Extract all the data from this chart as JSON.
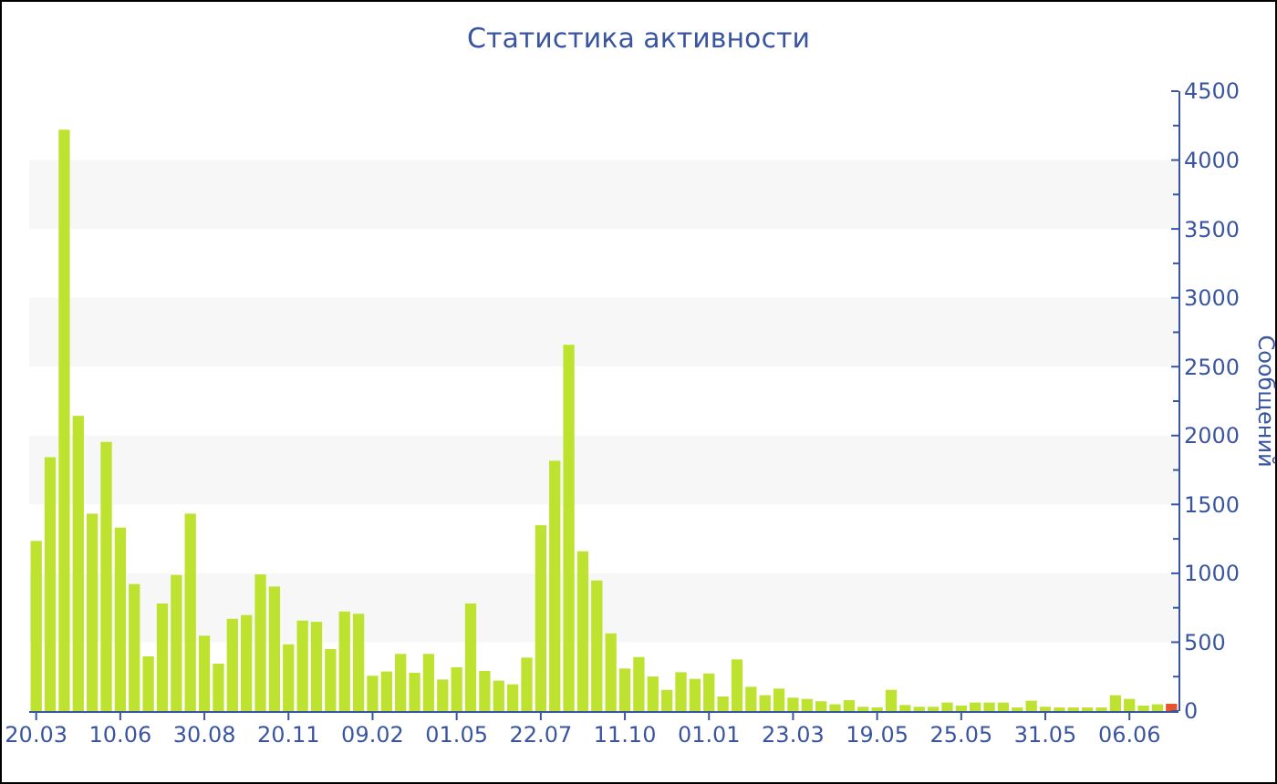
{
  "chart_data": {
    "type": "bar",
    "title": "Статистика активности",
    "ylabel": "Сообщений",
    "categories": [
      "20.03",
      null,
      null,
      null,
      null,
      null,
      "10.06",
      null,
      null,
      null,
      null,
      null,
      "30.08",
      null,
      null,
      null,
      null,
      null,
      "20.11",
      null,
      null,
      null,
      null,
      null,
      "09.02",
      null,
      null,
      null,
      null,
      null,
      "01.05",
      null,
      null,
      null,
      null,
      null,
      "22.07",
      null,
      null,
      null,
      null,
      null,
      "11.10",
      null,
      null,
      null,
      null,
      null,
      "01.01",
      null,
      null,
      null,
      null,
      null,
      "23.03",
      null,
      null,
      null,
      null,
      null,
      "19.05",
      null,
      null,
      null,
      null,
      null,
      "25.05",
      null,
      null,
      null,
      null,
      null,
      "31.05",
      null,
      null,
      null,
      null,
      null,
      "06.06",
      null,
      null,
      null
    ],
    "values": [
      1235,
      1843,
      4220,
      2143,
      1433,
      1954,
      1332,
      922,
      397,
      781,
      988,
      1433,
      547,
      344,
      670,
      697,
      992,
      904,
      485,
      657,
      648,
      450,
      723,
      706,
      256,
      287,
      415,
      278,
      415,
      229,
      318,
      781,
      291,
      221,
      194,
      388,
      1349,
      1817,
      2659,
      1160,
      948,
      564,
      309,
      392,
      251,
      154,
      282,
      234,
      273,
      106,
      375,
      176,
      115,
      163,
      97,
      88,
      71,
      49,
      79,
      31,
      26,
      154,
      44,
      31,
      31,
      62,
      40,
      62,
      62,
      62,
      26,
      75,
      31,
      26,
      26,
      26,
      26,
      115,
      88,
      40,
      49,
      53
    ],
    "colors": [
      "#bde22f",
      "#bde22f",
      "#bde22f",
      "#bde22f",
      "#bde22f",
      "#bde22f",
      "#bde22f",
      "#bde22f",
      "#bde22f",
      "#bde22f",
      "#bde22f",
      "#bde22f",
      "#bde22f",
      "#bde22f",
      "#bde22f",
      "#bde22f",
      "#bde22f",
      "#bde22f",
      "#bde22f",
      "#bde22f",
      "#bde22f",
      "#bde22f",
      "#bde22f",
      "#bde22f",
      "#bde22f",
      "#bde22f",
      "#bde22f",
      "#bde22f",
      "#bde22f",
      "#bde22f",
      "#bde22f",
      "#bde22f",
      "#bde22f",
      "#bde22f",
      "#bde22f",
      "#bde22f",
      "#bde22f",
      "#bde22f",
      "#bde22f",
      "#bde22f",
      "#bde22f",
      "#bde22f",
      "#bde22f",
      "#bde22f",
      "#bde22f",
      "#bde22f",
      "#bde22f",
      "#bde22f",
      "#bde22f",
      "#bde22f",
      "#bde22f",
      "#bde22f",
      "#bde22f",
      "#bde22f",
      "#bde22f",
      "#bde22f",
      "#bde22f",
      "#bde22f",
      "#bde22f",
      "#bde22f",
      "#bde22f",
      "#bde22f",
      "#bde22f",
      "#bde22f",
      "#bde22f",
      "#bde22f",
      "#bde22f",
      "#bde22f",
      "#bde22f",
      "#bde22f",
      "#bde22f",
      "#bde22f",
      "#bde22f",
      "#bde22f",
      "#bde22f",
      "#bde22f",
      "#bde22f",
      "#bde22f",
      "#bde22f",
      "#bde22f",
      "#bde22f",
      "#e8542a"
    ],
    "ylim": [
      0,
      4500
    ],
    "yticks": [
      0,
      {
        "value": 250,
        "label": null
      },
      500,
      {
        "value": 750,
        "label": null
      },
      1000,
      {
        "value": 1250,
        "label": null
      },
      1500,
      {
        "value": 1750,
        "label": null
      },
      2000,
      {
        "value": 2250,
        "label": null
      },
      2500,
      {
        "value": 2750,
        "label": null
      },
      3000,
      {
        "value": 3250,
        "label": null
      },
      3500,
      {
        "value": 3750,
        "label": null
      },
      4000,
      {
        "value": 4250,
        "label": null
      },
      4500
    ],
    "bands": [
      {
        "axis": "y",
        "from": 500,
        "to": 1000,
        "color": "#f7f7f7"
      },
      {
        "axis": "y",
        "from": 1500,
        "to": 2000,
        "color": "#f7f7f7"
      },
      {
        "axis": "y",
        "from": 2500,
        "to": 3000,
        "color": "#f7f7f7"
      },
      {
        "axis": "y",
        "from": 3500,
        "to": 4000,
        "color": "#f7f7f7"
      }
    ]
  }
}
